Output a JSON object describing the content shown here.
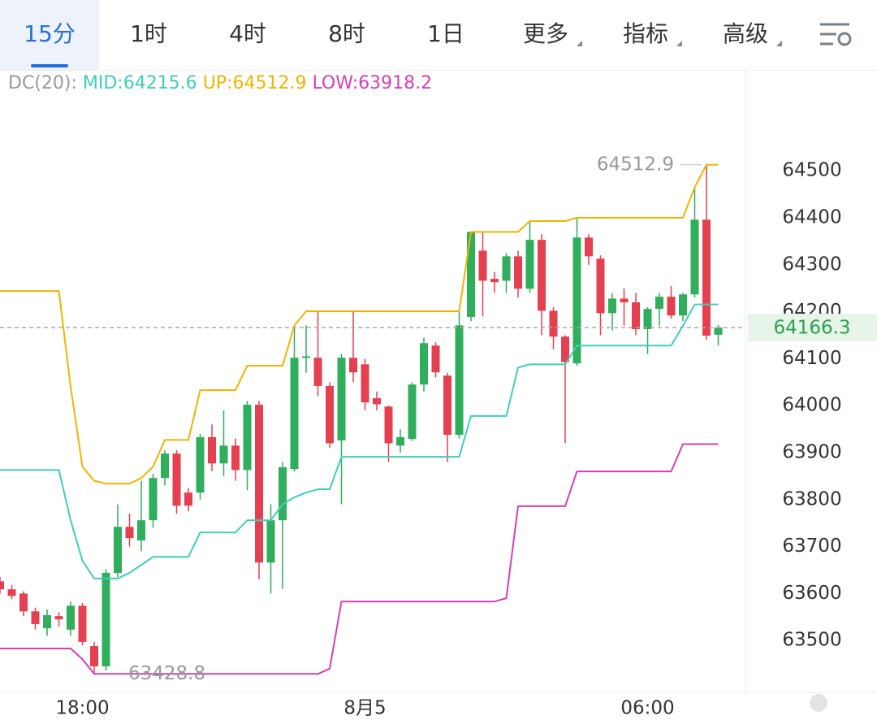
{
  "toolbar": {
    "tabs": [
      "15分",
      "1时",
      "4时",
      "8时",
      "1日",
      "更多",
      "指标",
      "高级"
    ]
  },
  "chart_data": {
    "type": "candlestick",
    "indicator": {
      "label": "DC(20):",
      "items": [
        "MID:64215.6",
        "UP:64512.9",
        "LOW:63918.2"
      ]
    },
    "categories": [
      null,
      null,
      null,
      null,
      null,
      null,
      null,
      "18:00",
      null,
      null,
      null,
      null,
      null,
      null,
      null,
      null,
      null,
      null,
      null,
      null,
      null,
      null,
      null,
      null,
      null,
      null,
      null,
      null,
      null,
      null,
      null,
      "8月5",
      null,
      null,
      null,
      null,
      null,
      null,
      null,
      null,
      null,
      null,
      null,
      null,
      null,
      null,
      null,
      null,
      null,
      null,
      null,
      null,
      null,
      null,
      null,
      "06:00",
      null,
      null,
      null,
      null,
      null,
      null
    ],
    "open": [
      63626,
      63609,
      63600,
      63562,
      63526,
      63552,
      63523,
      63574,
      63488,
      63445,
      63644,
      63742,
      63713,
      63756,
      63846,
      63898,
      63815,
      63815,
      63933,
      63877,
      63915,
      63863,
      64002,
      63666,
      63756,
      63865,
      64102,
      64102,
      64042,
      63926,
      64102,
      64088,
      64016,
      63998,
      63915,
      63929,
      64045,
      64128,
      64064,
      63938,
      64189,
      64330,
      64270,
      64266,
      64318,
      64249,
      64353,
      64202,
      64147,
      64090,
      64358,
      64313,
      64197,
      64228,
      64220,
      64163,
      64206,
      64232,
      64192,
      64237,
      64396,
      64151
    ],
    "high": [
      63635,
      63618,
      63605,
      63570,
      63566,
      63560,
      63583,
      63580,
      63497,
      63652,
      63790,
      63770,
      63840,
      63855,
      63905,
      63905,
      63825,
      63940,
      63960,
      63990,
      63930,
      64010,
      64010,
      63790,
      63880,
      64170,
      64171,
      64201,
      64050,
      64110,
      64201,
      64100,
      64030,
      64000,
      63950,
      64050,
      64145,
      64135,
      64070,
      64201,
      64370,
      64370,
      64285,
      64325,
      64330,
      64393,
      64365,
      64210,
      64150,
      64400,
      64365,
      64320,
      64240,
      64250,
      64240,
      64210,
      64240,
      64255,
      64240,
      64465,
      64512.9,
      64172
    ],
    "low": [
      63600,
      63588,
      63552,
      63523,
      63510,
      63530,
      63510,
      63490,
      63428.8,
      63436,
      63635,
      63700,
      63690,
      63740,
      63830,
      63770,
      63775,
      63800,
      63860,
      63850,
      63840,
      63820,
      63630,
      63600,
      63610,
      63860,
      64070,
      64020,
      63910,
      63790,
      64050,
      63990,
      63990,
      63880,
      63900,
      63925,
      64030,
      64060,
      63880,
      63930,
      64180,
      64190,
      64240,
      64240,
      64230,
      64240,
      64150,
      64120,
      63920,
      64085,
      64300,
      64150,
      64160,
      64170,
      64150,
      64110,
      64170,
      64185,
      64180,
      64230,
      64140,
      64128
    ],
    "close": [
      63609,
      63595,
      63562,
      63535,
      63554,
      63545,
      63574,
      63497,
      63445,
      63644,
      63742,
      63718,
      63756,
      63846,
      63898,
      63787,
      63787,
      63933,
      63877,
      63915,
      63863,
      64002,
      63666,
      63756,
      63869,
      64102,
      64105,
      64042,
      63920,
      64102,
      64071,
      64007,
      64003,
      63920,
      63933,
      64045,
      64133,
      64071,
      63938,
      64171,
      64370,
      64266,
      64263,
      64318,
      64249,
      64353,
      64202,
      64147,
      64093,
      64358,
      64318,
      64197,
      64228,
      64220,
      64163,
      64206,
      64232,
      64192,
      64237,
      64396,
      64149,
      64166.3
    ],
    "up_color": "#2fae5b",
    "down_color": "#e5404f",
    "series": [
      {
        "color": "#3fcfb6",
        "values": [
          63863,
          63863,
          63863,
          63863,
          63863,
          63863,
          63756,
          63670,
          63632,
          63632,
          63632,
          63644,
          63661,
          63678,
          63678,
          63678,
          63678,
          63730,
          63730,
          63730,
          63730,
          63756,
          63756,
          63756,
          63790,
          63805,
          63815,
          63822,
          63822,
          63891,
          63891,
          63891,
          63891,
          63891,
          63891,
          63891,
          63891,
          63891,
          63891,
          63891,
          63978,
          63978,
          63978,
          63978,
          64081,
          64088,
          64088,
          64088,
          64088,
          64128,
          64128,
          64128,
          64128,
          64128,
          64128,
          64128,
          64128,
          64128,
          64170,
          64215.6,
          64215.6,
          64215.6
        ]
      },
      {
        "color": "#f0b400",
        "values": [
          64244,
          64244,
          64244,
          64244,
          64244,
          64244,
          64040,
          63870,
          63840,
          63834,
          63834,
          63834,
          63846,
          63870,
          63927,
          63927,
          63927,
          64033,
          64033,
          64033,
          64033,
          64085,
          64085,
          64085,
          64085,
          64171,
          64201,
          64201,
          64201,
          64201,
          64201,
          64201,
          64201,
          64201,
          64201,
          64201,
          64201,
          64201,
          64201,
          64201,
          64370,
          64370,
          64370,
          64370,
          64370,
          64393,
          64393,
          64393,
          64393,
          64400,
          64400,
          64400,
          64400,
          64400,
          64400,
          64400,
          64400,
          64400,
          64400,
          64465,
          64512.9,
          64512.9
        ]
      },
      {
        "color": "#d63fb5",
        "values": [
          63483,
          63483,
          63483,
          63483,
          63483,
          63483,
          63483,
          63460,
          63428.8,
          63428.8,
          63428.8,
          63428.8,
          63428.8,
          63428.8,
          63428.8,
          63428.8,
          63428.8,
          63428.8,
          63428.8,
          63428.8,
          63428.8,
          63428.8,
          63428.8,
          63428.8,
          63428.8,
          63428.8,
          63428.8,
          63428.8,
          63440,
          63583,
          63583,
          63583,
          63583,
          63583,
          63583,
          63583,
          63583,
          63583,
          63583,
          63583,
          63583,
          63583,
          63583,
          63590,
          63786,
          63786,
          63786,
          63786,
          63786,
          63860,
          63860,
          63860,
          63860,
          63860,
          63860,
          63860,
          63860,
          63860,
          63918.2,
          63918.2,
          63918.2,
          63918.2
        ]
      }
    ],
    "high_label": {
      "value": 64512.9,
      "label": "64512.9"
    },
    "low_label": {
      "value": 63428.8,
      "label": "63428.8"
    },
    "last_price": {
      "value": 64166.3,
      "label": "64166.3"
    },
    "ylim": [
      63393,
      64708
    ],
    "yticks": [
      63500,
      63600,
      63700,
      63800,
      63900,
      64000,
      64100,
      64200,
      64300,
      64400,
      64500
    ],
    "grid": false
  }
}
